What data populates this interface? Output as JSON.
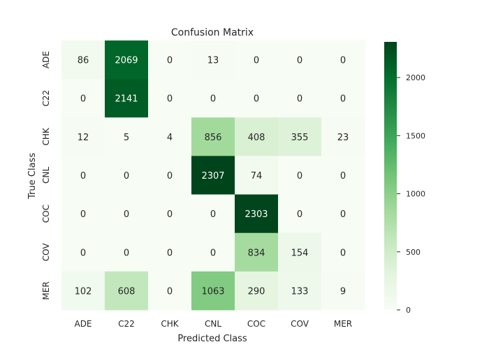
{
  "chart_data": {
    "type": "heatmap",
    "title": "Confusion Matrix",
    "xlabel": "Predicted Class",
    "ylabel": "True Class",
    "x_categories": [
      "ADE",
      "C22",
      "CHK",
      "CNL",
      "COC",
      "COV",
      "MER"
    ],
    "y_categories": [
      "ADE",
      "C22",
      "CHK",
      "CNL",
      "COC",
      "COV",
      "MER"
    ],
    "values": [
      [
        86,
        2069,
        0,
        13,
        0,
        0,
        0
      ],
      [
        0,
        2141,
        0,
        0,
        0,
        0,
        0
      ],
      [
        12,
        5,
        4,
        856,
        408,
        355,
        23
      ],
      [
        0,
        0,
        0,
        2307,
        74,
        0,
        0
      ],
      [
        0,
        0,
        0,
        0,
        2303,
        0,
        0
      ],
      [
        0,
        0,
        0,
        0,
        834,
        154,
        0
      ],
      [
        102,
        608,
        0,
        1063,
        290,
        133,
        9
      ]
    ],
    "colormap": "Greens",
    "color_low": "#f7fcf5",
    "color_high": "#00441b",
    "vmin": 0,
    "vmax": 2307,
    "colorbar_ticks": [
      0,
      500,
      1000,
      1500,
      2000
    ],
    "annotations": true
  }
}
